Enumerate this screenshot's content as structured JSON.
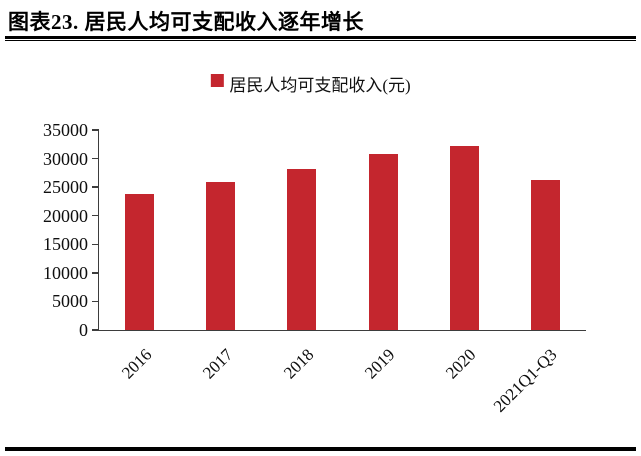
{
  "figure": {
    "title": "图表23. 居民人均可支配收入逐年增长"
  },
  "legend": {
    "label": "居民人均可支配收入(元)"
  },
  "colors": {
    "bar": "#C4262E",
    "axis": "#3d3d3d",
    "rule": "#000000"
  },
  "chart_data": {
    "type": "bar",
    "title": "居民人均可支配收入逐年增长",
    "categories": [
      "2016",
      "2017",
      "2018",
      "2019",
      "2020",
      "2021Q1-Q3"
    ],
    "values": [
      23821,
      25974,
      28228,
      30733,
      32189,
      26265
    ],
    "series_name": "居民人均可支配收入(元)",
    "xlabel": "",
    "ylabel": "",
    "ylim": [
      0,
      35000
    ],
    "yticks": [
      0,
      5000,
      10000,
      15000,
      20000,
      25000,
      30000,
      35000
    ],
    "grid": false,
    "legend_position": "top",
    "bar_color": "#C4262E"
  }
}
